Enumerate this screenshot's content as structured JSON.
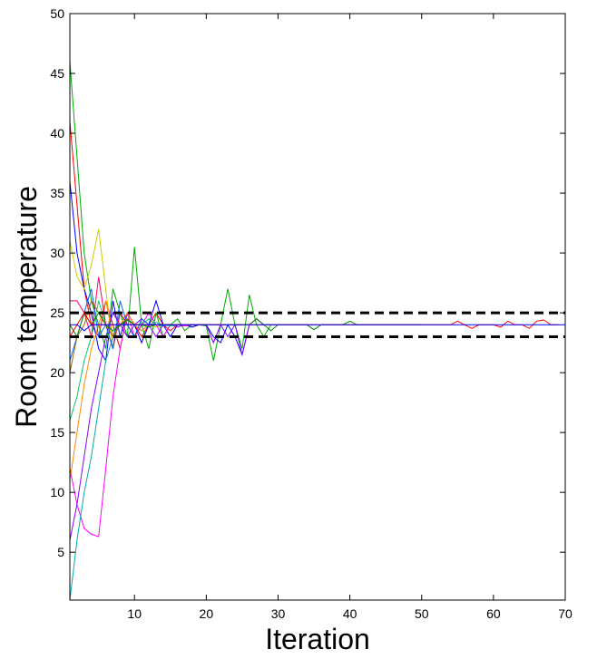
{
  "chart_data": {
    "type": "line",
    "title": "",
    "xlabel": "Iteration",
    "ylabel": "Room temperature",
    "xlim": [
      1,
      70
    ],
    "ylim": [
      1,
      50
    ],
    "xticks": [
      10,
      20,
      30,
      40,
      50,
      60,
      70
    ],
    "yticks": [
      5,
      10,
      15,
      20,
      25,
      30,
      35,
      40,
      45,
      50
    ],
    "grid": false,
    "legend": "none",
    "reference_lines": [
      {
        "y": 25,
        "style": "dashed",
        "color": "#000000"
      },
      {
        "y": 23,
        "style": "dashed",
        "color": "#000000"
      }
    ],
    "series": [
      {
        "color": "#ff0000",
        "values": [
          41,
          34,
          27,
          24,
          23,
          26,
          24,
          22,
          25,
          24,
          23,
          24,
          25,
          24,
          23.5,
          24,
          24,
          23.8,
          24,
          24
        ]
      },
      {
        "color": "#00aa00",
        "values": [
          46,
          38,
          30,
          26,
          24,
          22,
          27,
          25,
          23,
          30.5,
          24,
          22,
          25,
          23,
          24,
          24.5,
          23.5,
          24,
          24,
          23.9,
          21,
          24,
          27,
          24,
          22,
          26.5,
          24,
          23,
          24,
          24
        ]
      },
      {
        "color": "#0000ff",
        "values": [
          36,
          30,
          27,
          25,
          22,
          21,
          26,
          23,
          25,
          24,
          22.5,
          24,
          26,
          24,
          23,
          24,
          24,
          23.8,
          24,
          24,
          23,
          22.5,
          24,
          23,
          21.5,
          24
        ]
      },
      {
        "color": "#cccc00",
        "values": [
          31,
          28,
          27,
          29,
          32,
          27,
          22,
          25,
          24,
          23,
          24.5,
          24,
          23.8,
          24,
          24
        ]
      },
      {
        "color": "#ff00ff",
        "values": [
          12,
          9,
          7,
          6.5,
          6.3,
          12,
          18,
          22,
          25,
          23,
          24,
          25,
          24,
          23,
          24,
          24,
          23.9,
          24,
          24,
          24
        ]
      },
      {
        "color": "#00aaaa",
        "values": [
          1,
          6,
          10,
          13,
          17,
          21,
          23,
          25,
          24,
          24,
          23.5,
          24,
          24.2,
          24,
          24
        ]
      },
      {
        "color": "#ff8800",
        "values": [
          11,
          15,
          19,
          22,
          24,
          26,
          23,
          24,
          25,
          24,
          23.5,
          24,
          24,
          24
        ]
      },
      {
        "color": "#8800ff",
        "values": [
          6,
          9,
          13,
          17,
          20,
          23,
          25,
          24,
          23,
          24,
          24.5,
          24,
          23,
          24,
          24,
          23.8,
          24,
          24,
          24,
          24,
          22.5,
          24,
          23,
          24,
          21.5,
          24,
          24.5,
          24,
          24
        ]
      },
      {
        "color": "#00cc66",
        "values": [
          16,
          18,
          21,
          23,
          26,
          24,
          22,
          25,
          24,
          23,
          24,
          24.5,
          24,
          24,
          23.9,
          24
        ]
      },
      {
        "color": "#ff0066",
        "values": [
          26,
          26,
          25,
          23,
          28,
          24,
          22,
          25,
          24,
          23,
          24,
          24
        ]
      },
      {
        "color": "#0066ff",
        "values": [
          21,
          23,
          25,
          27,
          23,
          24,
          22,
          26,
          24,
          23,
          24.5,
          24,
          24,
          23.9,
          24
        ]
      },
      {
        "color": "#996600",
        "values": [
          20,
          23,
          24,
          26,
          25,
          24,
          23,
          24,
          24.5,
          24,
          24
        ]
      },
      {
        "color": "#008800",
        "values": [
          24,
          23,
          25,
          24,
          25,
          24,
          23.5,
          24,
          24.4,
          24,
          24,
          23.8,
          24,
          24,
          24,
          24,
          24,
          24,
          24,
          24,
          24,
          24,
          24,
          24,
          24,
          24,
          24.5,
          24,
          23.5,
          24,
          24,
          24,
          24,
          24,
          23.6,
          24,
          24,
          24,
          24,
          24.3,
          24,
          24,
          24,
          24,
          24,
          24,
          24,
          24,
          24,
          24
        ]
      },
      {
        "color": "#ff0000",
        "values": [
          23,
          24,
          25,
          24,
          24,
          24,
          24,
          24,
          24,
          24,
          24,
          24,
          24,
          24,
          24,
          24,
          24,
          24,
          24,
          24,
          24,
          24,
          24,
          24,
          24,
          24,
          24,
          24,
          24,
          24,
          24,
          24,
          24,
          24,
          24,
          24,
          24,
          24,
          24,
          24,
          24,
          24,
          24,
          24,
          24,
          24,
          24,
          24,
          24,
          24,
          24,
          24,
          24,
          24,
          24.3,
          24,
          23.7,
          24,
          24,
          24,
          23.8,
          24.3,
          24,
          24,
          23.7,
          24.3,
          24.4,
          24,
          24
        ]
      },
      {
        "color": "#0000ff",
        "values": [
          24,
          24,
          23.5,
          24,
          24,
          24,
          24,
          24,
          24,
          24,
          24,
          24,
          24,
          24,
          24,
          24,
          24,
          24,
          24,
          24,
          24,
          24,
          24,
          24,
          24,
          24,
          24,
          24,
          24,
          24,
          24,
          24,
          24,
          24,
          24,
          24,
          24,
          24,
          24,
          24,
          24,
          24,
          24,
          24,
          24,
          24,
          24,
          24,
          24,
          24,
          24,
          24,
          24,
          24,
          24,
          24,
          24,
          24,
          24,
          24,
          24,
          24,
          24,
          24,
          24,
          24,
          24,
          24,
          24,
          24
        ]
      }
    ]
  }
}
